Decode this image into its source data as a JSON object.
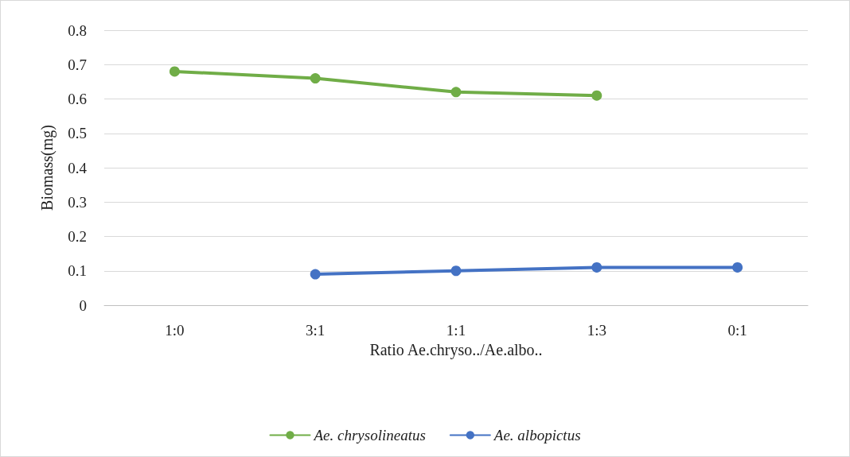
{
  "chart_data": {
    "type": "line",
    "xlabel": "Ratio Ae.chryso../Ae.albo..",
    "ylabel": "Biomass(mg)",
    "categories": [
      "1:0",
      "3:1",
      "1:1",
      "1:3",
      "0:1"
    ],
    "series": [
      {
        "name": "Ae. chrysolineatus",
        "color": "#70ad47",
        "values": [
          0.68,
          0.66,
          0.62,
          0.61,
          null
        ]
      },
      {
        "name": "Ae. albopictus",
        "color": "#4472c4",
        "values": [
          null,
          0.09,
          0.1,
          0.11,
          0.11
        ]
      }
    ],
    "ylim": [
      0,
      0.8
    ],
    "yticks": [
      0,
      0.1,
      0.2,
      0.3,
      0.4,
      0.5,
      0.6,
      0.7,
      0.8
    ],
    "grid": "y",
    "legend": "bottom",
    "marker": "circle",
    "line_style": "solid"
  }
}
